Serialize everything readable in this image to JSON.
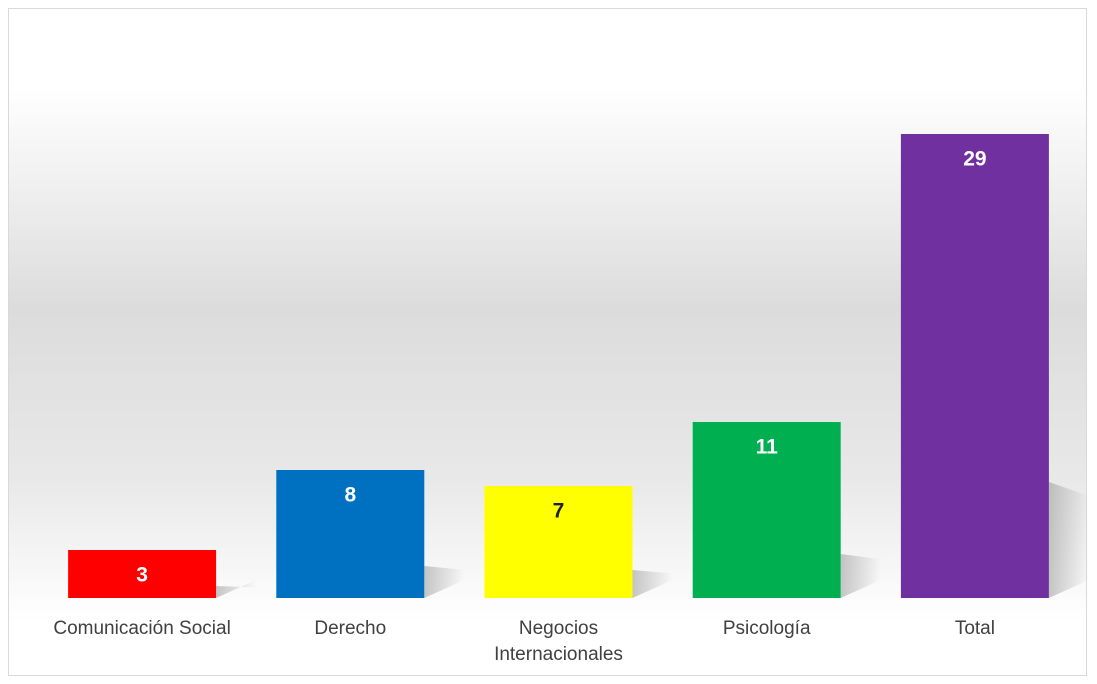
{
  "chart_data": {
    "type": "bar",
    "categories": [
      "Comunicación Social",
      "Derecho",
      "Negocios Internacionales",
      "Psicología",
      "Total"
    ],
    "values": [
      3,
      8,
      7,
      11,
      29
    ],
    "colors": [
      "#ff0000",
      "#0070c0",
      "#ffff00",
      "#00b050",
      "#7030a0"
    ],
    "ylim": [
      0,
      35
    ]
  }
}
